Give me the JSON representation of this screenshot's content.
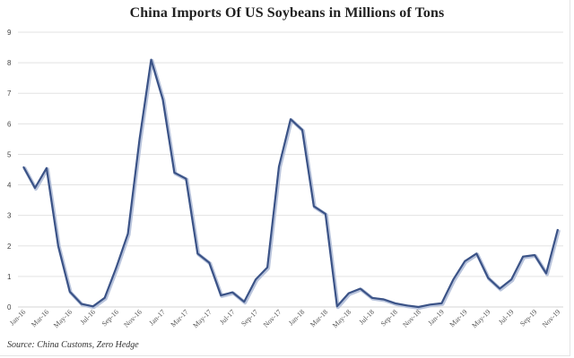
{
  "chart_data": {
    "type": "line",
    "title": "China Imports Of US Soybeans in Millions of Tons",
    "xlabel": "",
    "ylabel": "",
    "ylim": [
      0,
      9
    ],
    "yticks": [
      0,
      1,
      2,
      3,
      4,
      5,
      6,
      7,
      8,
      9
    ],
    "grid": true,
    "legend": null,
    "x_tick_labels": [
      "Jan-16",
      "Mar-16",
      "May-16",
      "Jul-16",
      "Sep-16",
      "Nov-16",
      "Jan-17",
      "Mar-17",
      "May-17",
      "Jul-17",
      "Sep-17",
      "Nov-17",
      "Jan-18",
      "Mar-18",
      "May-18",
      "Jul-18",
      "Sep-18",
      "Nov-18",
      "Jan-19",
      "Mar-19",
      "May-19",
      "Jul-19",
      "Sep-19",
      "Nov-19"
    ],
    "x": [
      "Jan-16",
      "Feb-16",
      "Mar-16",
      "Apr-16",
      "May-16",
      "Jun-16",
      "Jul-16",
      "Aug-16",
      "Sep-16",
      "Oct-16",
      "Nov-16",
      "Dec-16",
      "Jan-17",
      "Feb-17",
      "Mar-17",
      "Apr-17",
      "May-17",
      "Jun-17",
      "Jul-17",
      "Aug-17",
      "Sep-17",
      "Oct-17",
      "Nov-17",
      "Dec-17",
      "Jan-18",
      "Feb-18",
      "Mar-18",
      "Apr-18",
      "May-18",
      "Jun-18",
      "Jul-18",
      "Aug-18",
      "Sep-18",
      "Oct-18",
      "Nov-18",
      "Dec-18",
      "Jan-19",
      "Feb-19",
      "Mar-19",
      "Apr-19",
      "May-19",
      "Jun-19",
      "Jul-19",
      "Aug-19",
      "Sep-19",
      "Oct-19",
      "Nov-19"
    ],
    "series": [
      {
        "name": "China Imports Of US Soybeans",
        "color": "#3b5387",
        "values": [
          4.6,
          3.9,
          4.55,
          2.0,
          0.5,
          0.1,
          0.02,
          0.3,
          1.3,
          2.4,
          5.5,
          8.1,
          6.8,
          4.4,
          4.2,
          1.75,
          1.45,
          0.38,
          0.48,
          0.17,
          0.9,
          1.3,
          4.6,
          6.15,
          5.8,
          3.3,
          3.05,
          0.02,
          0.45,
          0.6,
          0.3,
          0.25,
          0.12,
          0.05,
          0.0,
          0.08,
          0.12,
          0.9,
          1.5,
          1.75,
          0.95,
          0.6,
          0.9,
          1.65,
          1.7,
          1.1,
          2.55
        ]
      }
    ],
    "source": "Source: China Customs, Zero Hedge"
  }
}
